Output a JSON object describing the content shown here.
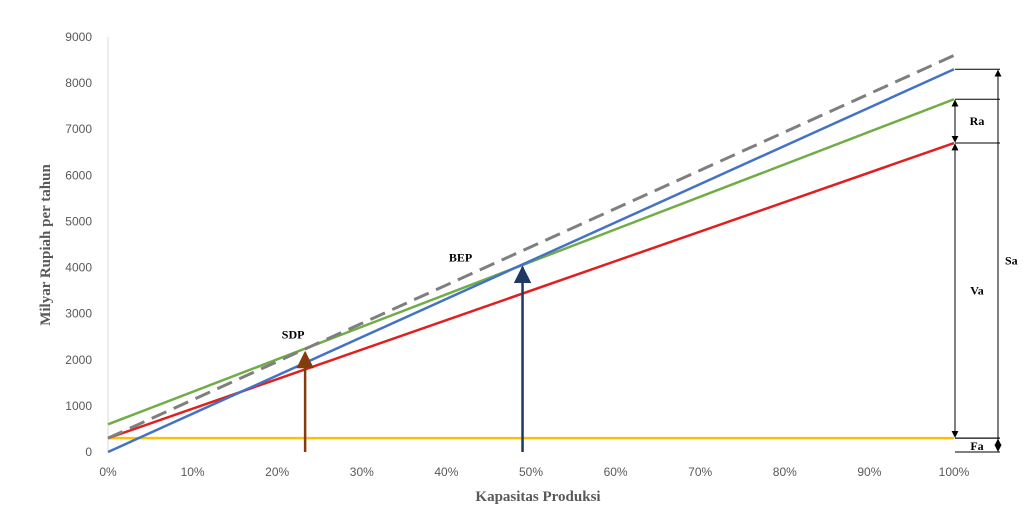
{
  "chart_data": {
    "type": "line",
    "title": "",
    "xlabel": "Kapasitas Produksi",
    "ylabel": "Milyar Rupiah per tahun",
    "x": [
      0,
      100
    ],
    "xticks": [
      "0%",
      "10%",
      "20%",
      "30%",
      "40%",
      "50%",
      "60%",
      "70%",
      "80%",
      "90%",
      "100%"
    ],
    "yticks": [
      "0",
      "1000",
      "2000",
      "3000",
      "4000",
      "5000",
      "6000",
      "7000",
      "8000",
      "9000"
    ],
    "xlim": [
      0,
      100
    ],
    "ylim": [
      0,
      9000
    ],
    "grid": false,
    "series": [
      {
        "values": [
          300,
          300
        ],
        "color": "#ffc000"
      },
      {
        "values": [
          300,
          6700
        ],
        "color": "#e02020"
      },
      {
        "values": [
          600,
          7650
        ],
        "color": "#70ad47"
      },
      {
        "values": [
          0,
          8300
        ],
        "color": "#4472c4"
      },
      {
        "values": [
          300,
          8600
        ],
        "color": "#7f7f7f",
        "dashed": true
      }
    ],
    "annotations": [
      {
        "label": "SDP",
        "x": 23.3,
        "y": 2200,
        "color": "#843c0c"
      },
      {
        "label": "BEP",
        "x": 49,
        "y": 4050,
        "color": "#1f3864"
      }
    ],
    "brackets": [
      {
        "label": "Ra",
        "from": 6700,
        "to": 7650
      },
      {
        "label": "Va",
        "from": 300,
        "to": 6700
      },
      {
        "label": "Sa",
        "from": 0,
        "to": 8300
      },
      {
        "label": "Fa",
        "from": 0,
        "to": 300
      }
    ]
  }
}
